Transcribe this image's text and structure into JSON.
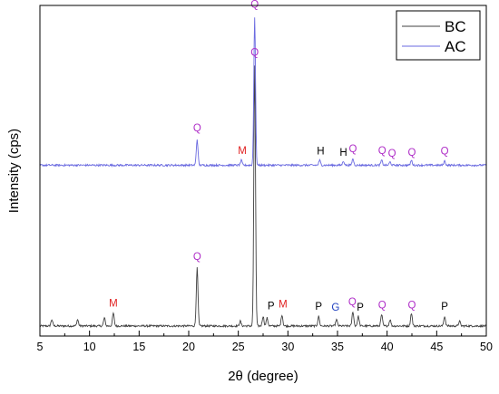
{
  "chart_data": {
    "type": "line",
    "xlabel": "2θ (degree)",
    "ylabel": "Intensity (cps)",
    "xlim": [
      5,
      50
    ],
    "x_ticks": [
      5,
      10,
      15,
      20,
      25,
      30,
      35,
      40,
      45,
      50
    ],
    "y_ticks_shown": false,
    "grid": false,
    "legend_position": "top-right",
    "colors": {
      "BC": "#404040",
      "AC": "#6a6ae0"
    },
    "series": [
      {
        "name": "BC",
        "baseline": 0.02,
        "peaks": [
          {
            "x": 6.2,
            "y": 0.04
          },
          {
            "x": 8.8,
            "y": 0.04
          },
          {
            "x": 11.5,
            "y": 0.045
          },
          {
            "x": 12.4,
            "y": 0.06
          },
          {
            "x": 20.85,
            "y": 0.2
          },
          {
            "x": 25.2,
            "y": 0.035
          },
          {
            "x": 26.65,
            "y": 0.83
          },
          {
            "x": 27.5,
            "y": 0.05
          },
          {
            "x": 27.9,
            "y": 0.045
          },
          {
            "x": 29.4,
            "y": 0.055
          },
          {
            "x": 33.1,
            "y": 0.05
          },
          {
            "x": 34.9,
            "y": 0.04
          },
          {
            "x": 36.55,
            "y": 0.065
          },
          {
            "x": 37.1,
            "y": 0.05
          },
          {
            "x": 39.45,
            "y": 0.055
          },
          {
            "x": 40.3,
            "y": 0.04
          },
          {
            "x": 42.45,
            "y": 0.06
          },
          {
            "x": 45.8,
            "y": 0.05
          },
          {
            "x": 47.3,
            "y": 0.035
          }
        ]
      },
      {
        "name": "AC",
        "baseline": 0.52,
        "peaks": [
          {
            "x": 20.85,
            "y": 0.6
          },
          {
            "x": 25.3,
            "y": 0.535
          },
          {
            "x": 26.65,
            "y": 0.98
          },
          {
            "x": 33.2,
            "y": 0.535
          },
          {
            "x": 35.6,
            "y": 0.533
          },
          {
            "x": 36.55,
            "y": 0.54
          },
          {
            "x": 39.45,
            "y": 0.535
          },
          {
            "x": 40.3,
            "y": 0.53
          },
          {
            "x": 42.45,
            "y": 0.535
          },
          {
            "x": 45.8,
            "y": 0.533
          }
        ]
      }
    ],
    "annotations": [
      {
        "text": "Q",
        "x": 26.65,
        "y": 1.01,
        "color": "#b030c8"
      },
      {
        "text": "Q",
        "x": 20.85,
        "y": 0.625,
        "color": "#b030c8"
      },
      {
        "text": "M",
        "x": 25.4,
        "y": 0.555,
        "color": "#e02020"
      },
      {
        "text": "H",
        "x": 33.3,
        "y": 0.553,
        "color": "#000000"
      },
      {
        "text": "H",
        "x": 35.6,
        "y": 0.55,
        "color": "#000000"
      },
      {
        "text": "Q",
        "x": 36.55,
        "y": 0.56,
        "color": "#b030c8"
      },
      {
        "text": "Q",
        "x": 39.5,
        "y": 0.555,
        "color": "#b030c8"
      },
      {
        "text": "Q",
        "x": 40.5,
        "y": 0.547,
        "color": "#b030c8"
      },
      {
        "text": "Q",
        "x": 42.5,
        "y": 0.55,
        "color": "#b030c8"
      },
      {
        "text": "Q",
        "x": 45.8,
        "y": 0.553,
        "color": "#b030c8"
      },
      {
        "text": "Q",
        "x": 26.65,
        "y": 0.86,
        "color": "#b030c8"
      },
      {
        "text": "Q",
        "x": 20.85,
        "y": 0.225,
        "color": "#b030c8"
      },
      {
        "text": "M",
        "x": 12.4,
        "y": 0.08,
        "color": "#e02020"
      },
      {
        "text": "P",
        "x": 28.3,
        "y": 0.072,
        "color": "#000000"
      },
      {
        "text": "M",
        "x": 29.5,
        "y": 0.078,
        "color": "#e02020"
      },
      {
        "text": "P",
        "x": 33.1,
        "y": 0.07,
        "color": "#000000"
      },
      {
        "text": "G",
        "x": 34.8,
        "y": 0.068,
        "color": "#2040c0"
      },
      {
        "text": "Q",
        "x": 36.5,
        "y": 0.085,
        "color": "#b030c8"
      },
      {
        "text": "P",
        "x": 37.3,
        "y": 0.068,
        "color": "#000000"
      },
      {
        "text": "Q",
        "x": 39.5,
        "y": 0.075,
        "color": "#b030c8"
      },
      {
        "text": "Q",
        "x": 42.5,
        "y": 0.075,
        "color": "#b030c8"
      },
      {
        "text": "P",
        "x": 45.8,
        "y": 0.07,
        "color": "#000000"
      }
    ]
  }
}
